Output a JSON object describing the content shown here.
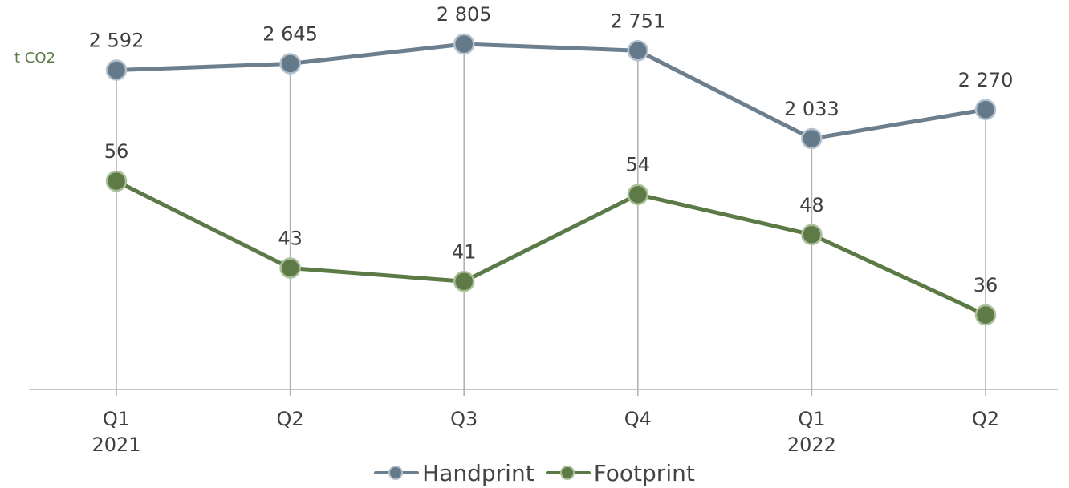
{
  "chart_data": {
    "type": "line",
    "unit_label": "t CO2",
    "categories": [
      {
        "quarter": "Q1",
        "year": "2021"
      },
      {
        "quarter": "Q2",
        "year": ""
      },
      {
        "quarter": "Q3",
        "year": ""
      },
      {
        "quarter": "Q4",
        "year": ""
      },
      {
        "quarter": "Q1",
        "year": "2022"
      },
      {
        "quarter": "Q2",
        "year": ""
      }
    ],
    "series": [
      {
        "name": "Handprint",
        "values": [
          2592,
          2645,
          2805,
          2751,
          2033,
          2270
        ],
        "labels": [
          "2 592",
          "2 645",
          "2 805",
          "2 751",
          "2 033",
          "2 270"
        ],
        "color": "#6b7f8f",
        "marker_fill": "#647a8b",
        "marker_stroke": "#b4c0cb"
      },
      {
        "name": "Footprint",
        "values": [
          56,
          43,
          41,
          54,
          48,
          36
        ],
        "labels": [
          "56",
          "43",
          "41",
          "54",
          "48",
          "36"
        ],
        "color": "#5b7a45",
        "marker_fill": "#5e7a46",
        "marker_stroke": "#aac19b"
      }
    ],
    "grid": false,
    "drop_lines": true,
    "legend_position": "bottom"
  }
}
